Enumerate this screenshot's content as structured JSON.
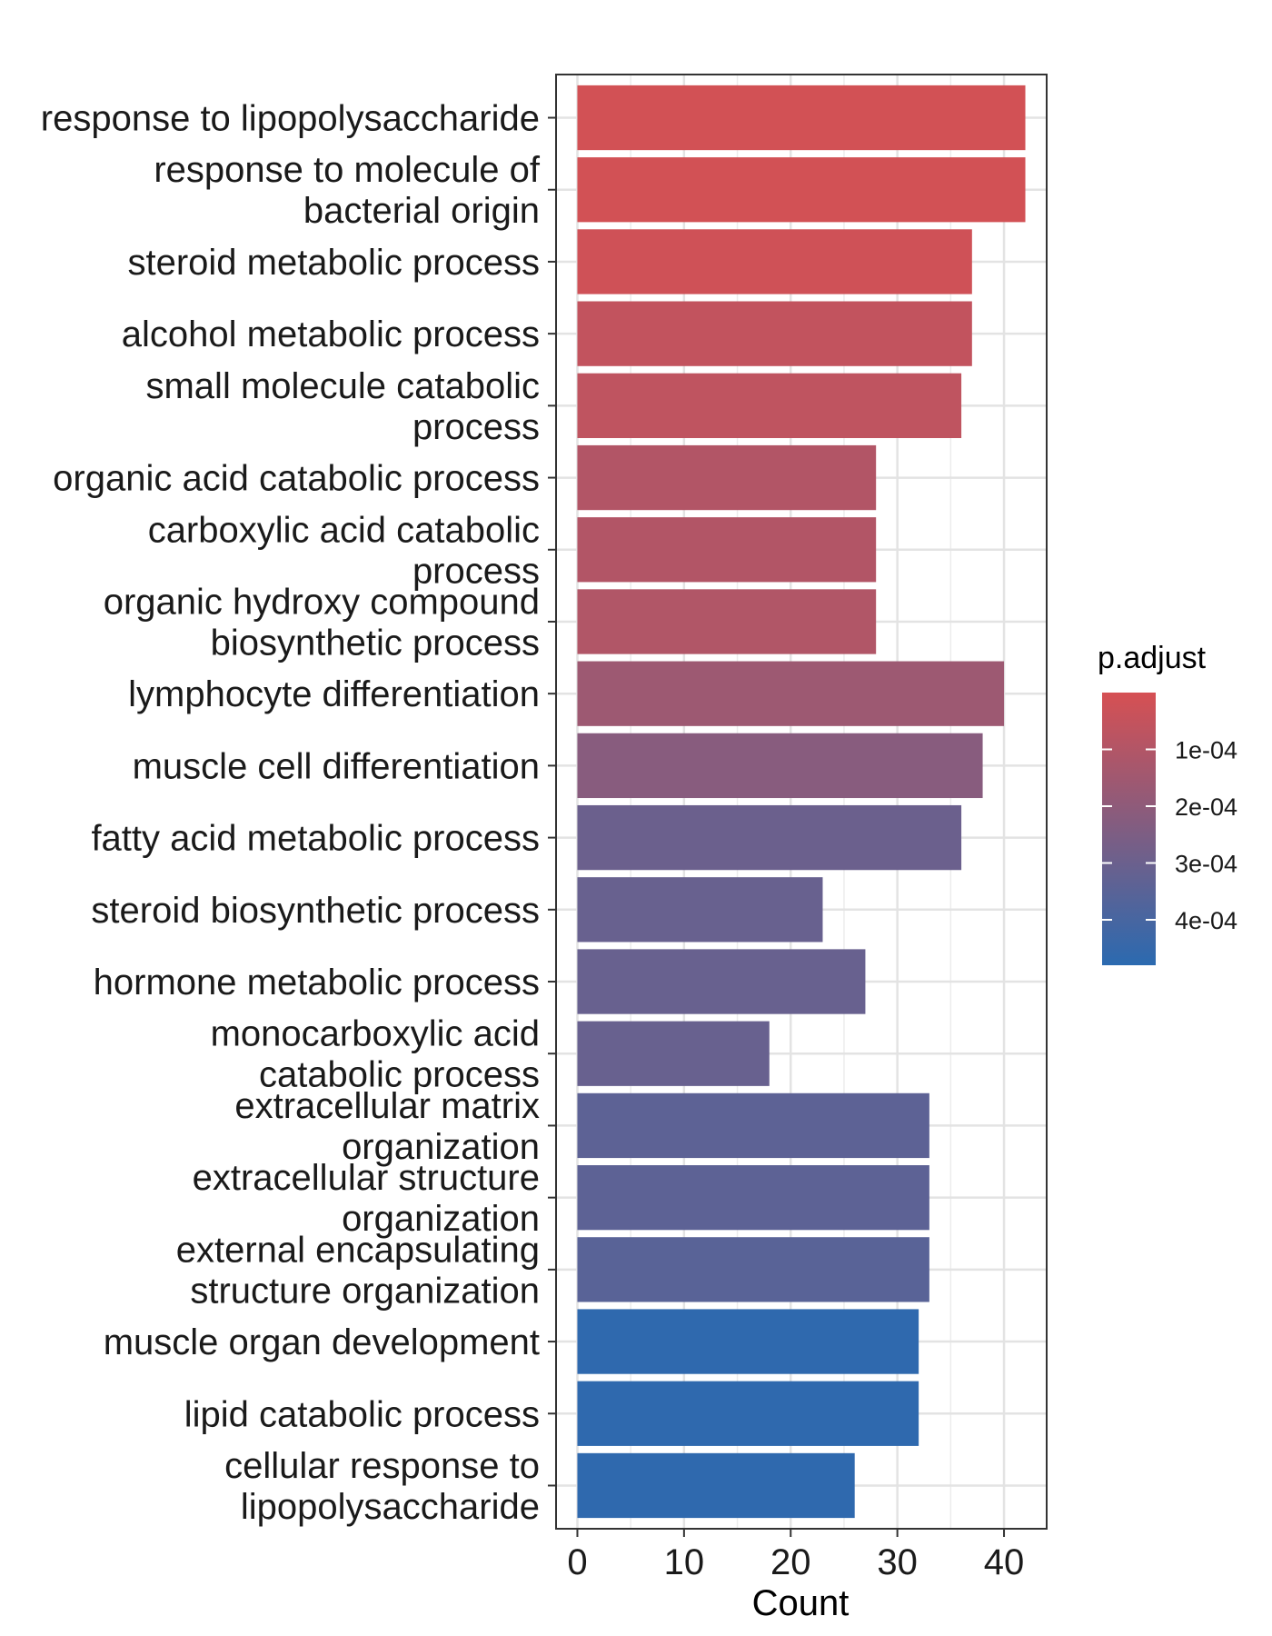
{
  "chart_data": {
    "type": "bar",
    "orientation": "horizontal",
    "xlabel": "Count",
    "ylabel": "",
    "xlim": [
      -2,
      44
    ],
    "xticks": [
      0,
      10,
      20,
      30,
      40
    ],
    "grid": true,
    "categories": [
      "response to lipopolysaccharide",
      "response to molecule of\nbacterial origin",
      "steroid metabolic process",
      "alcohol metabolic process",
      "small molecule catabolic\nprocess",
      "organic acid catabolic process",
      "carboxylic acid catabolic\nprocess",
      "organic hydroxy compound\nbiosynthetic process",
      "lymphocyte differentiation",
      "muscle cell differentiation",
      "fatty acid metabolic process",
      "steroid biosynthetic process",
      "hormone metabolic process",
      "monocarboxylic acid\ncatabolic process",
      "extracellular matrix\norganization",
      "extracellular structure\norganization",
      "external encapsulating\nstructure organization",
      "muscle organ development",
      "lipid catabolic process",
      "cellular response to\nlipopolysaccharide"
    ],
    "values": [
      42,
      42,
      37,
      37,
      36,
      28,
      28,
      28,
      40,
      38,
      36,
      23,
      27,
      18,
      33,
      33,
      33,
      32,
      32,
      26
    ],
    "p_adjust": [
      1e-05,
      1e-05,
      2e-05,
      5.5e-05,
      6.5e-05,
      0.0001,
      0.0001,
      0.000105,
      0.00016,
      0.00022,
      0.0003,
      0.00031,
      0.00031,
      0.00031,
      0.00034,
      0.00034,
      0.00035,
      0.00047,
      0.00047,
      0.00047
    ],
    "legend": {
      "title": "p.adjust",
      "placement": "right",
      "range": [
        0.0,
        0.00048
      ],
      "ticks": [
        0.0001,
        0.0002,
        0.0003,
        0.0004
      ],
      "tick_labels": [
        "1e-04",
        "2e-04",
        "3e-04",
        "4e-04"
      ],
      "color_low": "#d65053",
      "color_high": "#2b6ab0"
    }
  }
}
